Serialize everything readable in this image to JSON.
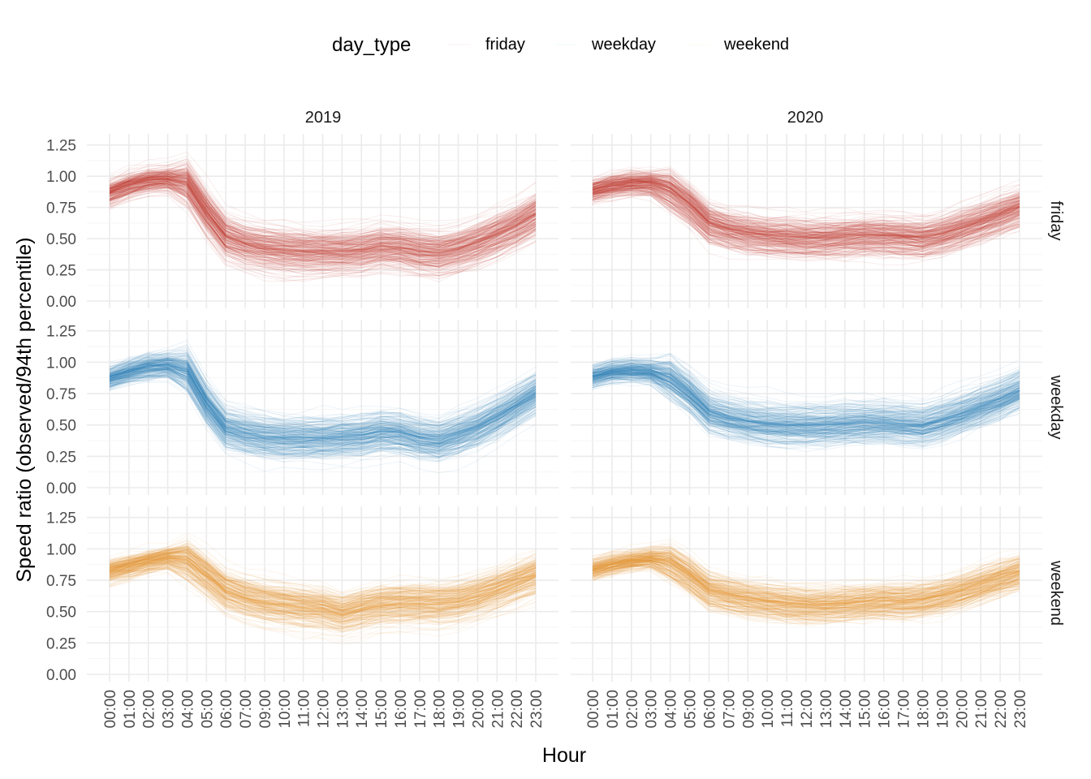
{
  "chart_data": {
    "type": "line",
    "title": "",
    "xlabel": "Hour",
    "ylabel": "Speed ratio (observed/94th percentile)",
    "legend": {
      "title": "day_type",
      "placement": "top",
      "entries": [
        "friday",
        "weekday",
        "weekend"
      ]
    },
    "facet_columns": [
      "2019",
      "2020"
    ],
    "facet_rows": [
      "friday",
      "weekday",
      "weekend"
    ],
    "colors": {
      "friday": "#c0392b",
      "weekday": "#2980b9",
      "weekend": "#e8952c"
    },
    "ylim": [
      0,
      1.3
    ],
    "yticks": [
      "0.00",
      "0.25",
      "0.50",
      "0.75",
      "1.00",
      "1.25"
    ],
    "ytick_values": [
      0,
      0.25,
      0.5,
      0.75,
      1.0,
      1.25
    ],
    "x": [
      "00:00",
      "01:00",
      "02:00",
      "03:00",
      "04:00",
      "05:00",
      "06:00",
      "07:00",
      "09:00",
      "10:00",
      "11:00",
      "12:00",
      "13:00",
      "14:00",
      "15:00",
      "16:00",
      "17:00",
      "18:00",
      "19:00",
      "20:00",
      "21:00",
      "22:00",
      "23:00"
    ],
    "grid": true,
    "series": [
      {
        "column": "2019",
        "row": "friday",
        "median": [
          0.87,
          0.93,
          0.97,
          0.98,
          0.95,
          0.72,
          0.52,
          0.46,
          0.43,
          0.41,
          0.4,
          0.4,
          0.4,
          0.41,
          0.44,
          0.43,
          0.4,
          0.39,
          0.42,
          0.47,
          0.54,
          0.61,
          0.7
        ],
        "spread": 0.09
      },
      {
        "column": "2020",
        "row": "friday",
        "median": [
          0.89,
          0.93,
          0.95,
          0.95,
          0.9,
          0.78,
          0.63,
          0.58,
          0.55,
          0.53,
          0.52,
          0.51,
          0.51,
          0.52,
          0.53,
          0.53,
          0.52,
          0.51,
          0.54,
          0.59,
          0.64,
          0.7,
          0.76
        ],
        "spread": 0.08
      },
      {
        "column": "2019",
        "row": "weekday",
        "median": [
          0.88,
          0.93,
          0.97,
          0.98,
          0.94,
          0.68,
          0.48,
          0.44,
          0.41,
          0.4,
          0.4,
          0.4,
          0.41,
          0.42,
          0.45,
          0.44,
          0.4,
          0.38,
          0.43,
          0.49,
          0.57,
          0.66,
          0.76
        ],
        "spread": 0.09
      },
      {
        "column": "2020",
        "row": "weekday",
        "median": [
          0.89,
          0.93,
          0.94,
          0.93,
          0.88,
          0.76,
          0.61,
          0.56,
          0.53,
          0.51,
          0.5,
          0.5,
          0.5,
          0.51,
          0.52,
          0.52,
          0.51,
          0.5,
          0.54,
          0.59,
          0.65,
          0.71,
          0.78
        ],
        "spread": 0.08
      },
      {
        "column": "2019",
        "row": "weekend",
        "median": [
          0.82,
          0.86,
          0.9,
          0.93,
          0.91,
          0.79,
          0.66,
          0.61,
          0.57,
          0.55,
          0.53,
          0.52,
          0.48,
          0.52,
          0.55,
          0.56,
          0.56,
          0.56,
          0.58,
          0.62,
          0.67,
          0.73,
          0.79
        ],
        "spread": 0.08
      },
      {
        "column": "2020",
        "row": "weekend",
        "median": [
          0.84,
          0.88,
          0.91,
          0.93,
          0.9,
          0.8,
          0.68,
          0.64,
          0.61,
          0.59,
          0.57,
          0.56,
          0.56,
          0.57,
          0.58,
          0.59,
          0.59,
          0.6,
          0.63,
          0.67,
          0.72,
          0.77,
          0.82
        ],
        "spread": 0.07
      }
    ]
  }
}
